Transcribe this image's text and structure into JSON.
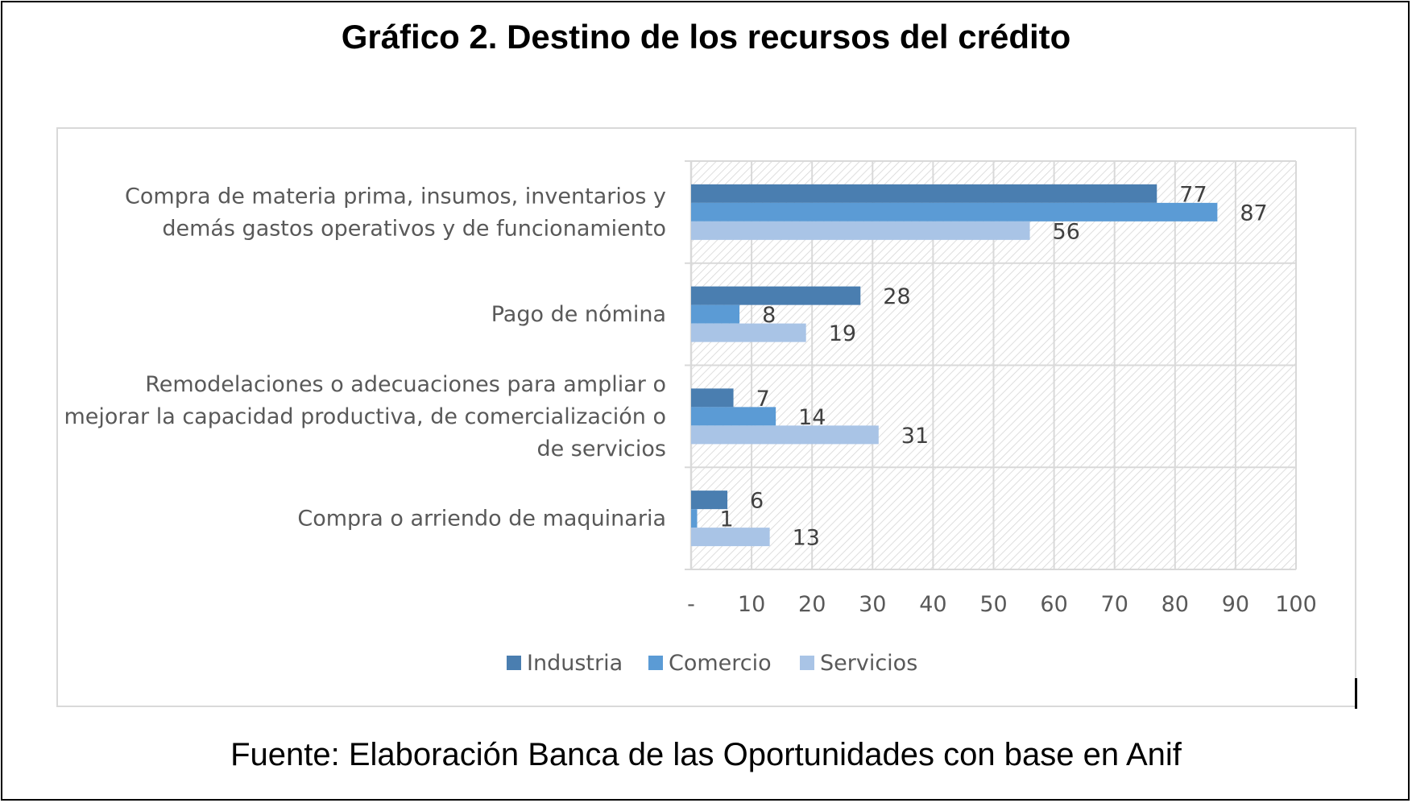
{
  "title": "Gráfico 2. Destino de los recursos del crédito",
  "source": "Fuente: Elaboración Banca de las Oportunidades con base en Anif",
  "colors": {
    "Industria": "#4a7eb0",
    "Comercio": "#5b9bd5",
    "Servicios": "#a9c4e6",
    "grid": "#d9d9d9",
    "hatch": "#d0d0d0"
  },
  "chart_data": {
    "type": "bar",
    "orientation": "horizontal",
    "categories": [
      [
        "Compra de materia prima, insumos, inventarios y",
        "demás gastos operativos y de funcionamiento"
      ],
      [
        "Pago de nómina"
      ],
      [
        "Remodelaciones o adecuaciones para ampliar o",
        "mejorar la capacidad productiva, de comercialización o",
        "de servicios"
      ],
      [
        "Compra o arriendo de maquinaria"
      ]
    ],
    "series": [
      {
        "name": "Industria",
        "values": [
          77,
          28,
          7,
          6
        ]
      },
      {
        "name": "Comercio",
        "values": [
          87,
          8,
          14,
          1
        ]
      },
      {
        "name": "Servicios",
        "values": [
          56,
          19,
          31,
          13
        ]
      }
    ],
    "xlim": [
      0,
      100
    ],
    "xticks": [
      "-",
      "10",
      "20",
      "30",
      "40",
      "50",
      "60",
      "70",
      "80",
      "90",
      "100"
    ],
    "grid": true,
    "legend": "bottom"
  }
}
